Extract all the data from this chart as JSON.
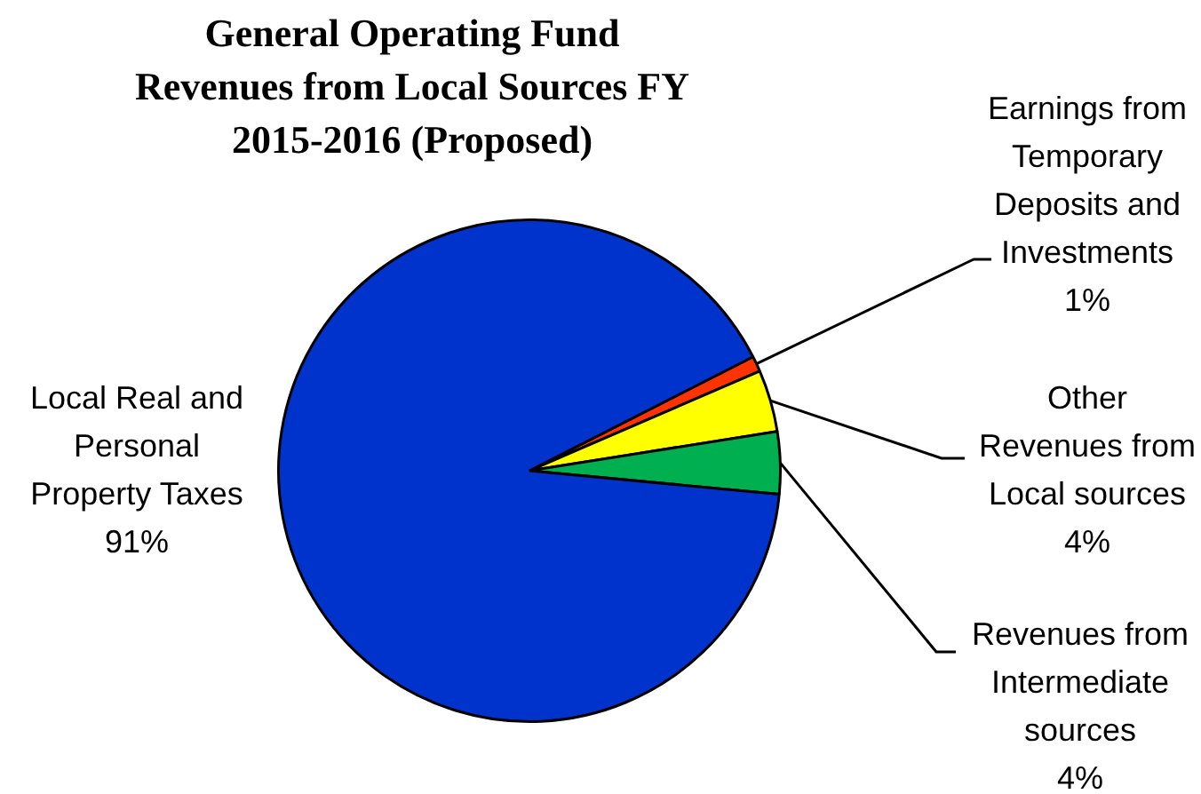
{
  "chart_data": {
    "type": "pie",
    "title": "General Operating Fund Revenues from Local Sources FY 2015-2016 (Proposed)",
    "categories": [
      "Earnings from Temporary Deposits and Investments",
      "Other Revenues from Local sources",
      "Revenues from Intermediate sources",
      "Local Real and Personal Property Taxes"
    ],
    "values": [
      1,
      4,
      4,
      91
    ],
    "value_labels": [
      "1%",
      "4%",
      "4%",
      "91%"
    ],
    "colors": [
      "#ff3300",
      "#ffff00",
      "#00b050",
      "#0033cc"
    ],
    "legend": false
  }
}
